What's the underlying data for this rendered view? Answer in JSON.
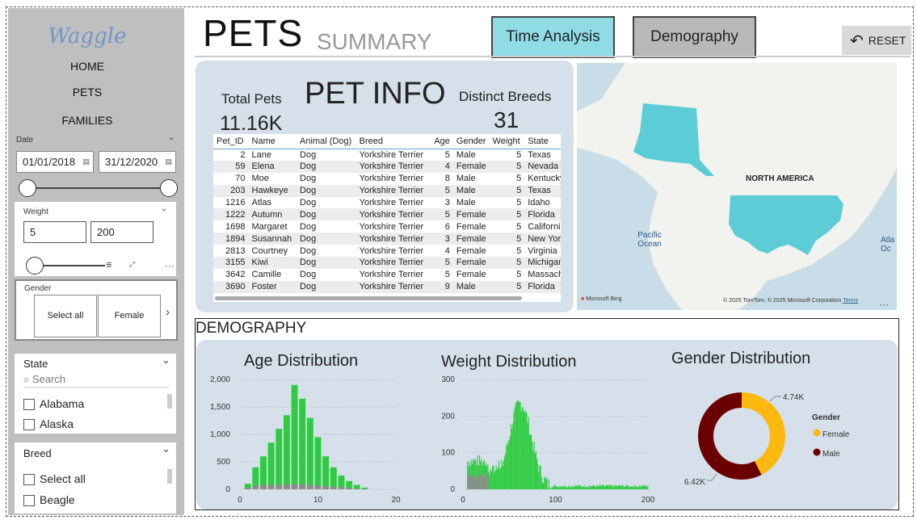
{
  "sidebar": {
    "logo": "Waggle",
    "nav": [
      "HOME",
      "PETS",
      "FAMILIES"
    ],
    "date": {
      "label": "Date",
      "start": "01/01/2018",
      "end": "31/12/2020",
      "slider_min": 0,
      "slider_max": 1
    },
    "weight": {
      "label": "Weight",
      "min": "5",
      "max": "200"
    },
    "gender": {
      "label": "Gender",
      "options": [
        "Select all",
        "Female"
      ]
    },
    "state": {
      "label": "State",
      "search_placeholder": "Search",
      "items": [
        "Alabama",
        "Alaska"
      ]
    },
    "breed": {
      "label": "Breed",
      "items": [
        "Select all",
        "Beagle"
      ]
    }
  },
  "header": {
    "title": "PETS",
    "subtitle": "SUMMARY",
    "btn_time": "Time Analysis",
    "btn_demo": "Demography",
    "reset": "RESET"
  },
  "petinfo": {
    "title": "PET INFO",
    "total_label": "Total Pets",
    "total_value": "11.16K",
    "breeds_label": "Distinct Breeds",
    "breeds_value": "31",
    "columns": [
      "Pet_ID",
      "Name",
      "Animal (Dog)",
      "Breed",
      "Age",
      "Gender",
      "Weight",
      "State"
    ],
    "rows": [
      [
        "2",
        "Lane",
        "Dog",
        "Yorkshire Terrier",
        "5",
        "Male",
        "5",
        "Texas"
      ],
      [
        "59",
        "Elena",
        "Dog",
        "Yorkshire Terrier",
        "4",
        "Female",
        "5",
        "Nevada"
      ],
      [
        "70",
        "Moe",
        "Dog",
        "Yorkshire Terrier",
        "8",
        "Male",
        "5",
        "Kentucky"
      ],
      [
        "203",
        "Hawkeye",
        "Dog",
        "Yorkshire Terrier",
        "5",
        "Male",
        "5",
        "Texas"
      ],
      [
        "1216",
        "Atlas",
        "Dog",
        "Yorkshire Terrier",
        "3",
        "Male",
        "5",
        "Idaho"
      ],
      [
        "1222",
        "Autumn",
        "Dog",
        "Yorkshire Terrier",
        "5",
        "Female",
        "5",
        "Florida"
      ],
      [
        "1698",
        "Margaret",
        "Dog",
        "Yorkshire Terrier",
        "6",
        "Female",
        "5",
        "California"
      ],
      [
        "1894",
        "Susannah",
        "Dog",
        "Yorkshire Terrier",
        "3",
        "Female",
        "5",
        "New York"
      ],
      [
        "2813",
        "Courtney",
        "Dog",
        "Yorkshire Terrier",
        "4",
        "Female",
        "5",
        "Virginia"
      ],
      [
        "3155",
        "Kiwi",
        "Dog",
        "Yorkshire Terrier",
        "5",
        "Female",
        "5",
        "Michigan"
      ],
      [
        "3642",
        "Camille",
        "Dog",
        "Yorkshire Terrier",
        "5",
        "Female",
        "5",
        "Massachusetts"
      ],
      [
        "3690",
        "Foster",
        "Dog",
        "Yorkshire Terrier",
        "9",
        "Male",
        "5",
        "Florida"
      ]
    ]
  },
  "map": {
    "region_label": "NORTH AMERICA",
    "ocean1": "Pacific Ocean",
    "ocean2": "Atla Oc",
    "brand": "Microsoft Bing",
    "copyright": "© 2025 TomTom, © 2025 Microsoft Corporation",
    "terms": "Terms",
    "highlight_color": "#5ccdd6"
  },
  "demography": {
    "section_title": "DEMOGRAPHY"
  },
  "chart_data": [
    {
      "type": "bar",
      "title": "Age Distribution",
      "xlim": [
        0,
        20
      ],
      "ylim": [
        0,
        2000
      ],
      "yticks": [
        "0",
        "500",
        "1,000",
        "1,500",
        "2,000"
      ],
      "xticks": [
        "0",
        "10",
        "20"
      ],
      "x": [
        1,
        2,
        3,
        4,
        5,
        6,
        7,
        8,
        9,
        10,
        11,
        12,
        13,
        14,
        15,
        16
      ],
      "series": [
        {
          "values": [
            100,
            400,
            600,
            850,
            1100,
            1350,
            1900,
            1650,
            1300,
            950,
            600,
            400,
            250,
            150,
            80,
            30
          ],
          "color": "#2ecc40"
        },
        {
          "values": [
            30,
            70,
            80,
            80,
            80,
            90,
            90,
            90,
            80,
            70,
            60,
            50,
            40,
            30,
            10,
            5
          ],
          "color": "#8c8c8c"
        }
      ]
    },
    {
      "type": "bar",
      "title": "Weight Distribution",
      "xlim": [
        0,
        200
      ],
      "ylim": [
        0,
        300
      ],
      "yticks": [
        "0",
        "100",
        "200",
        "300"
      ],
      "xticks": [
        "0",
        "100",
        "200"
      ],
      "color": "#2ecc40",
      "secondary_color": "#8c8c8c"
    },
    {
      "type": "pie",
      "title": "Gender Distribution",
      "legend_title": "Gender",
      "slices": [
        {
          "name": "Female",
          "value": 4.74,
          "label": "4.74K",
          "color": "#fcb90f"
        },
        {
          "name": "Male",
          "value": 6.42,
          "label": "6.42K",
          "color": "#6b0000"
        }
      ]
    }
  ]
}
